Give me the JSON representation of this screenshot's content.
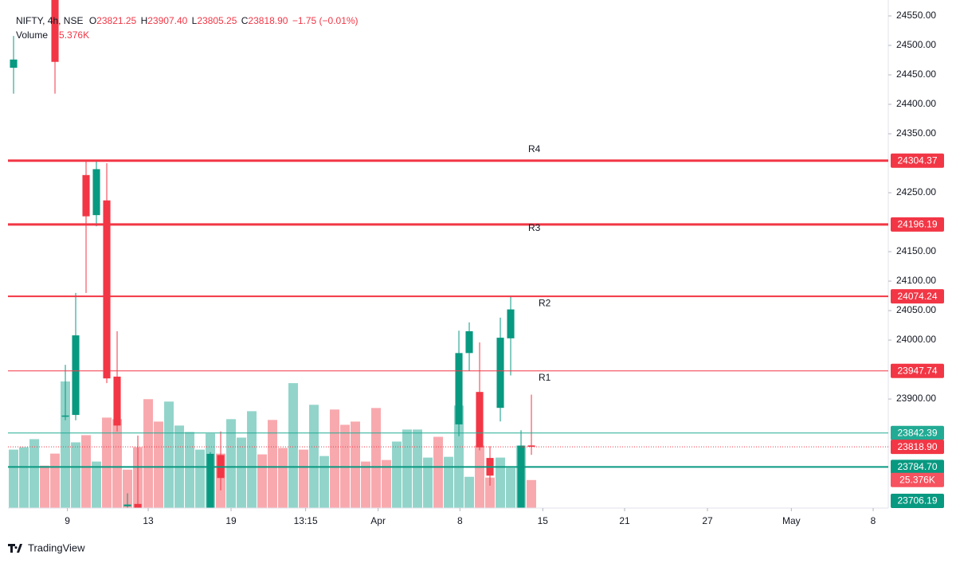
{
  "chart_data": {
    "type": "candlestick",
    "title": "NIFTY, 4h, NSE",
    "header_values": [
      {
        "letter": "O",
        "value": 23821.25,
        "label": "23821.25"
      },
      {
        "letter": "H",
        "value": 23907.4,
        "label": "23907.40"
      },
      {
        "letter": "L",
        "value": 23805.25,
        "label": "23805.25"
      },
      {
        "letter": "C",
        "value": 23818.9,
        "label": "23818.90"
      }
    ],
    "change_text": "−1.75 (−0.01%)",
    "volume_title": "Volume",
    "ylim": [
      23715,
      24577
    ],
    "yticks": [
      {
        "value": 24550,
        "label": "24550.00"
      },
      {
        "value": 24500,
        "label": "24500.00"
      },
      {
        "value": 24450,
        "label": "24450.00"
      },
      {
        "value": 24400,
        "label": "24400.00"
      },
      {
        "value": 24350,
        "label": "24350.00"
      },
      {
        "value": 24250,
        "label": "24250.00"
      },
      {
        "value": 24150,
        "label": "24150.00"
      },
      {
        "value": 24100,
        "label": "24100.00"
      },
      {
        "value": 24050,
        "label": "24050.00"
      },
      {
        "value": 24000,
        "label": "24000.00"
      },
      {
        "value": 23900,
        "label": "23900.00"
      }
    ],
    "xlim": [
      -0.54,
      84.46
    ],
    "xticks": [
      {
        "value": 5.2,
        "label": "9"
      },
      {
        "value": 13,
        "label": "13"
      },
      {
        "value": 21,
        "label": "19"
      },
      {
        "value": 28.2,
        "label": "13:15"
      },
      {
        "value": 35.2,
        "label": "Apr"
      },
      {
        "value": 43.1,
        "label": "8"
      },
      {
        "value": 51.1,
        "label": "15"
      },
      {
        "value": 59,
        "label": "21"
      },
      {
        "value": 67,
        "label": "27"
      },
      {
        "value": 75.1,
        "label": "May"
      },
      {
        "value": 83,
        "label": "8"
      }
    ],
    "grid": false,
    "up_color": "#089981",
    "down_color": "#f23645",
    "candles": {
      "x": [
        0,
        4,
        5,
        6,
        7,
        8,
        9,
        10,
        11,
        12,
        19,
        20,
        43,
        44,
        45,
        46,
        47,
        48,
        49,
        50
      ],
      "open": [
        24462,
        24590,
        23870,
        23873,
        24280,
        24212,
        24237,
        23938,
        23718,
        23722,
        23690,
        23805,
        23857,
        23978,
        23912,
        23800,
        23885,
        24003,
        23712,
        23821.25
      ],
      "high": [
        24516,
        24600,
        23958,
        24080,
        24304,
        24304,
        24300,
        24015,
        23740,
        23838,
        23810,
        23845,
        24016,
        24030,
        23996,
        23820,
        24038,
        24075,
        23847,
        23907.4
      ],
      "low": [
        24418,
        24418,
        23864,
        23864,
        24080,
        24193,
        23927,
        23845,
        23700,
        23690,
        23650,
        23745,
        23837,
        23948,
        23813,
        23753,
        23862,
        23940,
        23690,
        23805.25
      ],
      "close": [
        24476,
        24472,
        23872,
        24008,
        24210,
        24290,
        23935,
        23855,
        23721,
        23700,
        23807,
        23766,
        23978,
        24015,
        23818,
        23770,
        24004,
        24052,
        23821,
        23818.9
      ]
    },
    "volume": {
      "name": "Volume",
      "vlim": [
        0,
        460
      ],
      "up_color": "#92d4ca",
      "down_color": "#f8a9ae",
      "x": [
        0,
        1,
        2,
        3,
        4,
        5,
        6,
        7,
        8,
        9,
        10,
        11,
        12,
        13,
        14,
        15,
        16,
        17,
        18,
        19,
        20,
        21,
        22,
        23,
        24,
        25,
        26,
        27,
        28,
        29,
        30,
        31,
        32,
        33,
        34,
        35,
        36,
        37,
        38,
        39,
        40,
        41,
        42,
        43,
        44,
        45,
        46,
        47,
        48,
        49,
        50
      ],
      "directions": [
        "up",
        "up",
        "up",
        "down",
        "down",
        "up",
        "up",
        "down",
        "up",
        "down",
        "down",
        "down",
        "down",
        "down",
        "down",
        "up",
        "up",
        "up",
        "up",
        "up",
        "down",
        "up",
        "up",
        "up",
        "down",
        "down",
        "down",
        "up",
        "down",
        "up",
        "up",
        "down",
        "down",
        "down",
        "down",
        "down",
        "down",
        "up",
        "up",
        "up",
        "up",
        "down",
        "up",
        "up",
        "up",
        "down",
        "down",
        "up",
        "up",
        "up",
        "down"
      ],
      "values": [
        52.9,
        55.1,
        62.4,
        38.4,
        49.3,
        114.6,
        59.5,
        66.0,
        42.1,
        81.9,
        80.5,
        34.8,
        55.1,
        98.6,
        78.3,
        96.4,
        74.7,
        68.9,
        52.9,
        67.4,
        49.3,
        80.5,
        63.8,
        87.7,
        48.6,
        79.8,
        54.4,
        113.1,
        52.9,
        93.5,
        47.1,
        89.2,
        75.4,
        78.3,
        42.1,
        90.6,
        43.5,
        60.2,
        71.1,
        71.1,
        45.7,
        64.5,
        46.4,
        92.8,
        28.3,
        56.6,
        27.6,
        45.7,
        36.3,
        56.6,
        25.376
      ],
      "last_label": "25.376K"
    },
    "levels": [
      {
        "name": "R4",
        "value": 24304.37,
        "color": "#f23645",
        "width": 3
      },
      {
        "name": "R3",
        "value": 24196.19,
        "color": "#f23645",
        "width": 3
      },
      {
        "name": "R2",
        "value": 24074.24,
        "color": "#f23645",
        "width": 2
      },
      {
        "name": "R1",
        "value": 23947.74,
        "color": "#f23645",
        "width": 1
      },
      {
        "value": 23842.39,
        "color": "#22ab94",
        "width": 1
      },
      {
        "value": 23784.7,
        "tag": "23784.70",
        "color": "#089981",
        "width": 2
      },
      {
        "value": 23706.19,
        "color": "#089981",
        "width": 0
      }
    ],
    "last_price": {
      "value": 23818.9,
      "label": "23818.90",
      "color": "#f23645"
    },
    "brand": "TradingView"
  }
}
